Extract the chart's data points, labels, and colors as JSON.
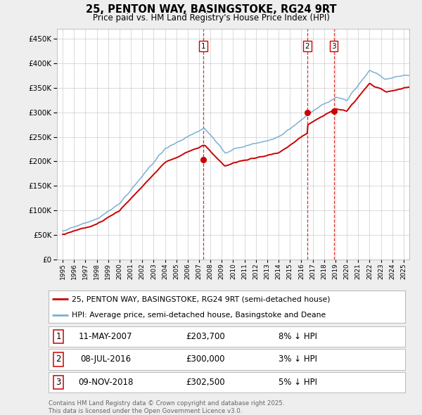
{
  "title": "25, PENTON WAY, BASINGSTOKE, RG24 9RT",
  "subtitle": "Price paid vs. HM Land Registry's House Price Index (HPI)",
  "ylim": [
    0,
    470000
  ],
  "yticks": [
    0,
    50000,
    100000,
    150000,
    200000,
    250000,
    300000,
    350000,
    400000,
    450000
  ],
  "xlim_start": 1994.5,
  "xlim_end": 2025.5,
  "background_color": "#eeeeee",
  "plot_bg_color": "#ffffff",
  "grid_color": "#cccccc",
  "red_line_color": "#cc0000",
  "blue_line_color": "#7ab0d4",
  "sale_markers": [
    {
      "date_num": 2007.36,
      "price": 203700,
      "label": "1"
    },
    {
      "date_num": 2016.52,
      "price": 300000,
      "label": "2"
    },
    {
      "date_num": 2018.85,
      "price": 302500,
      "label": "3"
    }
  ],
  "legend_red": "25, PENTON WAY, BASINGSTOKE, RG24 9RT (semi-detached house)",
  "legend_blue": "HPI: Average price, semi-detached house, Basingstoke and Deane",
  "table_rows": [
    {
      "num": "1",
      "date": "11-MAY-2007",
      "price": "£203,700",
      "pct": "8% ↓ HPI"
    },
    {
      "num": "2",
      "date": "08-JUL-2016",
      "price": "£300,000",
      "pct": "3% ↓ HPI"
    },
    {
      "num": "3",
      "date": "09-NOV-2018",
      "price": "£302,500",
      "pct": "5% ↓ HPI"
    }
  ],
  "footer": "Contains HM Land Registry data © Crown copyright and database right 2025.\nThis data is licensed under the Open Government Licence v3.0."
}
